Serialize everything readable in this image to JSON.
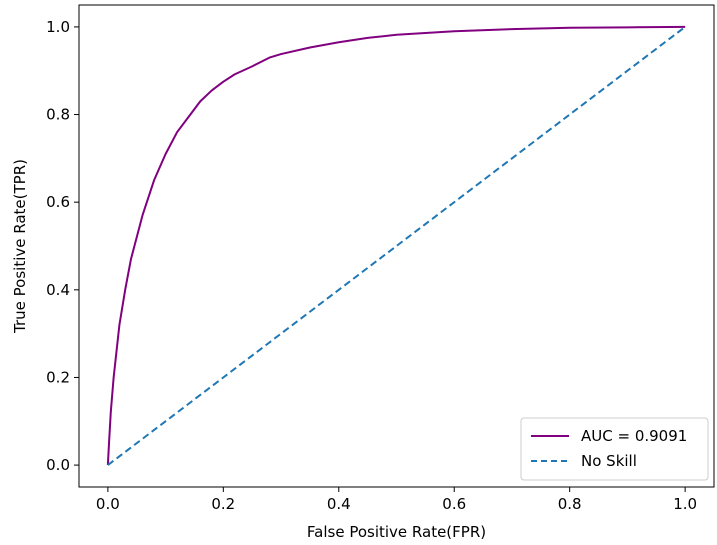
{
  "chart_data": {
    "type": "line",
    "title": "",
    "xlabel": "False Positive Rate(FPR)",
    "ylabel": "True Positive Rate(TPR)",
    "xlim": [
      -0.05,
      1.05
    ],
    "ylim": [
      -0.05,
      1.05
    ],
    "x_ticks": [
      "0.0",
      "0.2",
      "0.4",
      "0.6",
      "0.8",
      "1.0"
    ],
    "y_ticks": [
      "0.0",
      "0.2",
      "0.4",
      "0.6",
      "0.8",
      "1.0"
    ],
    "grid": false,
    "legend_position": "lower-right",
    "series": [
      {
        "name": "AUC = 0.9091",
        "color": "#800080",
        "style": "solid",
        "x": [
          0.0,
          0.002,
          0.005,
          0.01,
          0.015,
          0.02,
          0.03,
          0.04,
          0.05,
          0.06,
          0.08,
          0.1,
          0.12,
          0.14,
          0.16,
          0.18,
          0.2,
          0.22,
          0.25,
          0.28,
          0.3,
          0.35,
          0.4,
          0.45,
          0.5,
          0.6,
          0.7,
          0.8,
          0.9,
          1.0
        ],
        "y": [
          0.0,
          0.05,
          0.12,
          0.2,
          0.26,
          0.32,
          0.4,
          0.47,
          0.52,
          0.57,
          0.65,
          0.71,
          0.76,
          0.795,
          0.83,
          0.855,
          0.875,
          0.892,
          0.91,
          0.93,
          0.938,
          0.953,
          0.965,
          0.975,
          0.982,
          0.99,
          0.995,
          0.998,
          0.999,
          1.0
        ]
      },
      {
        "name": "No Skill",
        "color": "#1f77b4",
        "style": "dashed",
        "x": [
          0.0,
          1.0
        ],
        "y": [
          0.0,
          1.0
        ]
      }
    ]
  }
}
